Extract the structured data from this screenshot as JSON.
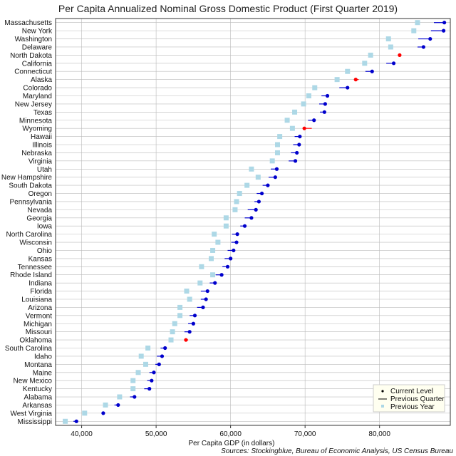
{
  "chart_data": {
    "type": "scatter",
    "title": "Per Capita Annualized Nominal Gross Domestic Product (First Quarter 2019)",
    "xlabel": "Per Capita GDP (in dollars)",
    "source": "Sources: Stockingblue, Bureau of Economic Analysis, US Census Bureau",
    "xlim": [
      36500,
      89500
    ],
    "xticks": [
      40000,
      50000,
      60000,
      70000,
      80000
    ],
    "xtick_labels": [
      "40,000",
      "50,000",
      "60,000",
      "70,000",
      "80,000"
    ],
    "grid": true,
    "legend_position": "bottom-right",
    "legend": {
      "current": "Current Level",
      "previous_quarter": "Previous Quarter",
      "previous_year": "Previous Year"
    },
    "colors": {
      "increase": "#0000cc",
      "decrease": "#ff0000",
      "previous_year": "#add8e6",
      "grid": "#bbbbbb",
      "frame": "#333333",
      "legend_bg": "#fffff0"
    },
    "states": [
      {
        "name": "Massachusetts",
        "current": 88700,
        "prev_quarter": 87300,
        "prev_year": 85100
      },
      {
        "name": "New York",
        "current": 88600,
        "prev_quarter": 86900,
        "prev_year": 84600
      },
      {
        "name": "Washington",
        "current": 86800,
        "prev_quarter": 85200,
        "prev_year": 81200
      },
      {
        "name": "Delaware",
        "current": 85900,
        "prev_quarter": 85100,
        "prev_year": 81500
      },
      {
        "name": "North Dakota",
        "current": 82700,
        "prev_quarter": 82900,
        "prev_year": 78800
      },
      {
        "name": "California",
        "current": 81900,
        "prev_quarter": 80900,
        "prev_year": 78000
      },
      {
        "name": "Connecticut",
        "current": 79000,
        "prev_quarter": 78100,
        "prev_year": 75700
      },
      {
        "name": "Alaska",
        "current": 76800,
        "prev_quarter": 77200,
        "prev_year": 74300
      },
      {
        "name": "Colorado",
        "current": 75700,
        "prev_quarter": 74600,
        "prev_year": 71300
      },
      {
        "name": "Maryland",
        "current": 73000,
        "prev_quarter": 72200,
        "prev_year": 70500
      },
      {
        "name": "New Jersey",
        "current": 72700,
        "prev_quarter": 71900,
        "prev_year": 69800
      },
      {
        "name": "Texas",
        "current": 72600,
        "prev_quarter": 72000,
        "prev_year": 68600
      },
      {
        "name": "Minnesota",
        "current": 71200,
        "prev_quarter": 70400,
        "prev_year": 67600
      },
      {
        "name": "Wyoming",
        "current": 69900,
        "prev_quarter": 70900,
        "prev_year": 68300
      },
      {
        "name": "Hawaii",
        "current": 69300,
        "prev_quarter": 68600,
        "prev_year": 66600
      },
      {
        "name": "Illinois",
        "current": 69200,
        "prev_quarter": 68400,
        "prev_year": 66300
      },
      {
        "name": "Nebraska",
        "current": 68900,
        "prev_quarter": 68100,
        "prev_year": 66300
      },
      {
        "name": "Virginia",
        "current": 68700,
        "prev_quarter": 67800,
        "prev_year": 65600
      },
      {
        "name": "Utah",
        "current": 66200,
        "prev_quarter": 65400,
        "prev_year": 62800
      },
      {
        "name": "New Hampshire",
        "current": 66000,
        "prev_quarter": 65100,
        "prev_year": 63700
      },
      {
        "name": "South Dakota",
        "current": 65000,
        "prev_quarter": 64300,
        "prev_year": 62200
      },
      {
        "name": "Oregon",
        "current": 64200,
        "prev_quarter": 63500,
        "prev_year": 61200
      },
      {
        "name": "Pennsylvania",
        "current": 63800,
        "prev_quarter": 63200,
        "prev_year": 60800
      },
      {
        "name": "Nevada",
        "current": 63400,
        "prev_quarter": 62300,
        "prev_year": 60600
      },
      {
        "name": "Georgia",
        "current": 62800,
        "prev_quarter": 61900,
        "prev_year": 59400
      },
      {
        "name": "Iowa",
        "current": 61900,
        "prev_quarter": 61300,
        "prev_year": 59400
      },
      {
        "name": "North Carolina",
        "current": 60900,
        "prev_quarter": 60200,
        "prev_year": 57800
      },
      {
        "name": "Wisconsin",
        "current": 60800,
        "prev_quarter": 60100,
        "prev_year": 58300
      },
      {
        "name": "Ohio",
        "current": 60400,
        "prev_quarter": 59600,
        "prev_year": 57600
      },
      {
        "name": "Kansas",
        "current": 60000,
        "prev_quarter": 59200,
        "prev_year": 57400
      },
      {
        "name": "Tennessee",
        "current": 59600,
        "prev_quarter": 58900,
        "prev_year": 56100
      },
      {
        "name": "Rhode Island",
        "current": 58800,
        "prev_quarter": 58000,
        "prev_year": 57600
      },
      {
        "name": "Indiana",
        "current": 57900,
        "prev_quarter": 57200,
        "prev_year": 55900
      },
      {
        "name": "Florida",
        "current": 56900,
        "prev_quarter": 56000,
        "prev_year": 54100
      },
      {
        "name": "Louisiana",
        "current": 56700,
        "prev_quarter": 56000,
        "prev_year": 54500
      },
      {
        "name": "Arizona",
        "current": 56300,
        "prev_quarter": 55500,
        "prev_year": 53200
      },
      {
        "name": "Vermont",
        "current": 55200,
        "prev_quarter": 54500,
        "prev_year": 53200
      },
      {
        "name": "Michigan",
        "current": 55000,
        "prev_quarter": 54300,
        "prev_year": 52500
      },
      {
        "name": "Missouri",
        "current": 54500,
        "prev_quarter": 53800,
        "prev_year": 52200
      },
      {
        "name": "Oklahoma",
        "current": 54000,
        "prev_quarter": 54300,
        "prev_year": 52000
      },
      {
        "name": "South Carolina",
        "current": 51200,
        "prev_quarter": 50600,
        "prev_year": 48900
      },
      {
        "name": "Idaho",
        "current": 50800,
        "prev_quarter": 50100,
        "prev_year": 48000
      },
      {
        "name": "Montana",
        "current": 50400,
        "prev_quarter": 49900,
        "prev_year": 48600
      },
      {
        "name": "Maine",
        "current": 49700,
        "prev_quarter": 49100,
        "prev_year": 47600
      },
      {
        "name": "New Mexico",
        "current": 49400,
        "prev_quarter": 48800,
        "prev_year": 46900
      },
      {
        "name": "Kentucky",
        "current": 49100,
        "prev_quarter": 48400,
        "prev_year": 46900
      },
      {
        "name": "Alabama",
        "current": 47100,
        "prev_quarter": 46500,
        "prev_year": 45100
      },
      {
        "name": "Arkansas",
        "current": 44900,
        "prev_quarter": 44400,
        "prev_year": 43200
      },
      {
        "name": "West Virginia",
        "current": 42900,
        "prev_quarter": 42700,
        "prev_year": 40400
      },
      {
        "name": "Mississippi",
        "current": 39300,
        "prev_quarter": 38900,
        "prev_year": 37800
      }
    ]
  }
}
